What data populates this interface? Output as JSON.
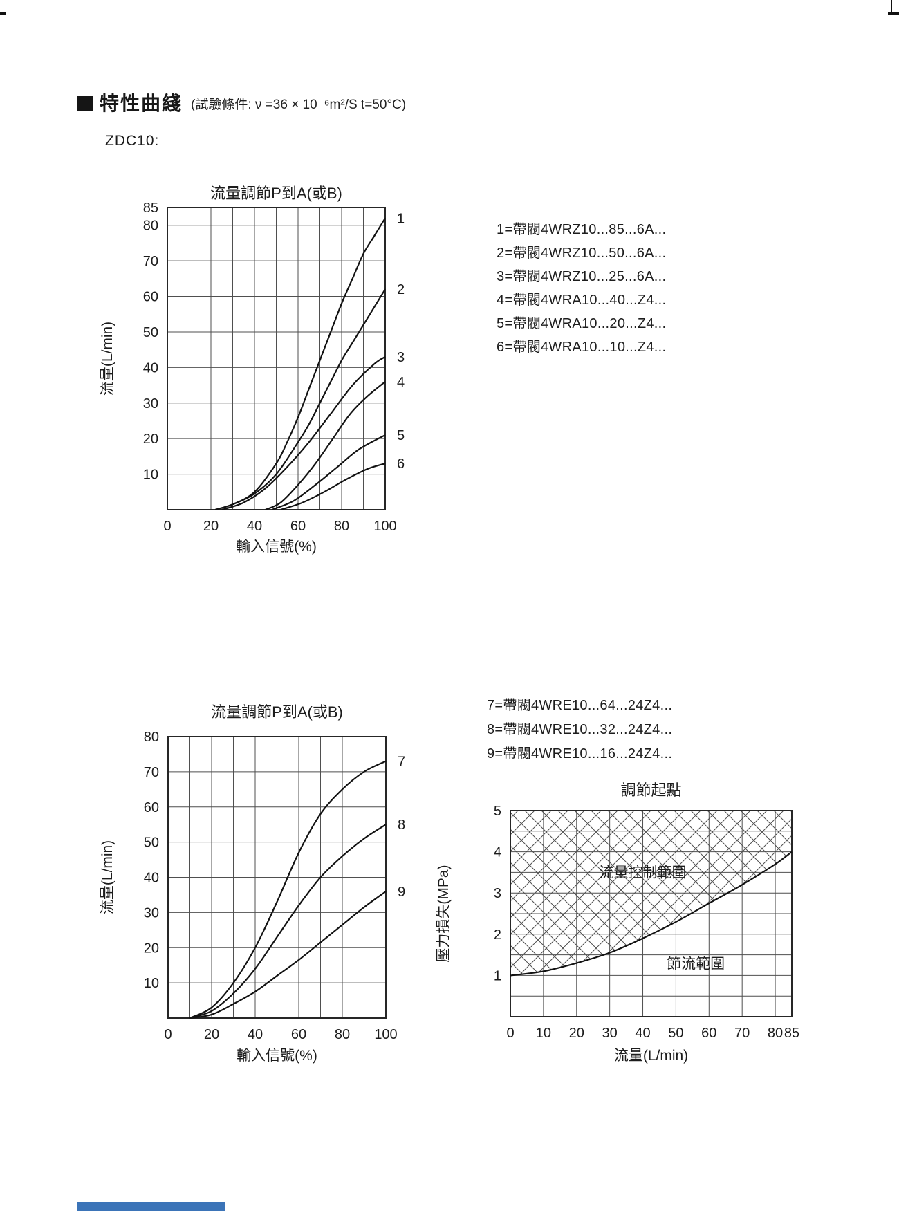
{
  "page": {
    "header": {
      "marker": "",
      "title": "特性曲綫",
      "condition": "(試驗條件: ν =36 × 10⁻⁶m²/S   t=50°C)"
    },
    "model": "ZDC10:"
  },
  "legend1": {
    "items": [
      {
        "label": "1=帶閥4WRZ10...85...6A..."
      },
      {
        "label": "2=帶閥4WRZ10...50...6A..."
      },
      {
        "label": "3=帶閥4WRZ10...25...6A..."
      },
      {
        "label": "4=帶閥4WRA10...40...Z4..."
      },
      {
        "label": "5=帶閥4WRA10...20...Z4..."
      },
      {
        "label": "6=帶閥4WRA10...10...Z4..."
      }
    ]
  },
  "legend2": {
    "items": [
      {
        "label": "7=帶閥4WRE10...64...24Z4..."
      },
      {
        "label": "8=帶閥4WRE10...32...24Z4..."
      },
      {
        "label": "9=帶閥4WRE10...16...24Z4..."
      }
    ]
  },
  "accents": {
    "footer_bar_color": "#3b74b8",
    "grid_color": "#4f4f4f",
    "border_color": "#262626",
    "curve_color": "#121212",
    "text_color": "#1c1c1c"
  },
  "chart_data": [
    {
      "id": "flow-adjust-1",
      "type": "line",
      "title": "流量調節P到A(或B)",
      "xlabel": "輸入信號(%)",
      "ylabel": "流量(L/min)",
      "xlim": [
        0,
        100
      ],
      "ylim": [
        0,
        85
      ],
      "xticks": [
        0,
        20,
        40,
        60,
        80,
        100
      ],
      "yticks": [
        10,
        20,
        30,
        40,
        50,
        60,
        70,
        80,
        85
      ],
      "xgrid_step": 10,
      "ygrid_step": 10,
      "grid": true,
      "legend_position": "right-of-curve-ends",
      "series": [
        {
          "name": "1",
          "points": [
            [
              22,
              0
            ],
            [
              30,
              1.5
            ],
            [
              40,
              5
            ],
            [
              50,
              13
            ],
            [
              55,
              19
            ],
            [
              60,
              26
            ],
            [
              65,
              34
            ],
            [
              70,
              42
            ],
            [
              75,
              50
            ],
            [
              80,
              58
            ],
            [
              85,
              65
            ],
            [
              90,
              72
            ],
            [
              95,
              77
            ],
            [
              100,
              82
            ]
          ]
        },
        {
          "name": "2",
          "points": [
            [
              22,
              0
            ],
            [
              30,
              1.5
            ],
            [
              40,
              4.5
            ],
            [
              50,
              10
            ],
            [
              60,
              19
            ],
            [
              65,
              24
            ],
            [
              70,
              30
            ],
            [
              75,
              36
            ],
            [
              80,
              42
            ],
            [
              85,
              47
            ],
            [
              90,
              52
            ],
            [
              95,
              57
            ],
            [
              100,
              62
            ]
          ]
        },
        {
          "name": "3",
          "points": [
            [
              25,
              0
            ],
            [
              35,
              2
            ],
            [
              45,
              6
            ],
            [
              55,
              12
            ],
            [
              65,
              19
            ],
            [
              75,
              27
            ],
            [
              85,
              35
            ],
            [
              95,
              41
            ],
            [
              100,
              43
            ]
          ]
        },
        {
          "name": "4",
          "points": [
            [
              45,
              0
            ],
            [
              52,
              2
            ],
            [
              60,
              7
            ],
            [
              68,
              13
            ],
            [
              76,
              20
            ],
            [
              84,
              27
            ],
            [
              92,
              32
            ],
            [
              100,
              36
            ]
          ]
        },
        {
          "name": "5",
          "points": [
            [
              48,
              0
            ],
            [
              58,
              2.5
            ],
            [
              68,
              7
            ],
            [
              78,
              12
            ],
            [
              88,
              17
            ],
            [
              100,
              21
            ]
          ]
        },
        {
          "name": "6",
          "points": [
            [
              52,
              0
            ],
            [
              62,
              2
            ],
            [
              72,
              5
            ],
            [
              82,
              8.5
            ],
            [
              92,
              11.5
            ],
            [
              100,
              13
            ]
          ]
        }
      ]
    },
    {
      "id": "flow-adjust-2",
      "type": "line",
      "title": "流量調節P到A(或B)",
      "xlabel": "輸入信號(%)",
      "ylabel": "流量(L/min)",
      "xlim": [
        0,
        100
      ],
      "ylim": [
        0,
        80
      ],
      "xticks": [
        0,
        20,
        40,
        60,
        80,
        100
      ],
      "yticks": [
        10,
        20,
        30,
        40,
        50,
        60,
        70,
        80
      ],
      "xgrid_step": 10,
      "ygrid_step": 10,
      "grid": true,
      "legend_position": "right-of-curve-ends",
      "series": [
        {
          "name": "7",
          "points": [
            [
              10,
              0
            ],
            [
              20,
              3
            ],
            [
              30,
              10
            ],
            [
              40,
              20
            ],
            [
              50,
              33
            ],
            [
              60,
              47
            ],
            [
              70,
              58
            ],
            [
              80,
              65
            ],
            [
              90,
              70
            ],
            [
              100,
              73
            ]
          ]
        },
        {
          "name": "8",
          "points": [
            [
              10,
              0
            ],
            [
              20,
              2
            ],
            [
              30,
              7
            ],
            [
              40,
              14
            ],
            [
              50,
              23
            ],
            [
              60,
              32
            ],
            [
              70,
              40
            ],
            [
              80,
              46
            ],
            [
              90,
              51
            ],
            [
              100,
              55
            ]
          ]
        },
        {
          "name": "9",
          "points": [
            [
              10,
              0
            ],
            [
              20,
              1
            ],
            [
              30,
              4
            ],
            [
              40,
              7.5
            ],
            [
              50,
              12
            ],
            [
              60,
              16.5
            ],
            [
              70,
              21.5
            ],
            [
              80,
              26.5
            ],
            [
              90,
              31.5
            ],
            [
              100,
              36
            ]
          ]
        }
      ]
    },
    {
      "id": "adjust-start-point",
      "type": "area",
      "title": "調節起點",
      "xlabel": "流量(L/min)",
      "ylabel": "壓力損失(MPa)",
      "xlim": [
        0,
        85
      ],
      "ylim": [
        0,
        5
      ],
      "xticks": [
        0,
        10,
        20,
        30,
        40,
        50,
        60,
        70,
        80,
        85
      ],
      "yticks": [
        1,
        2,
        3,
        4,
        5
      ],
      "xgrid_step": 10,
      "ygrid_step": 0.5,
      "grid": true,
      "hatch_above_curve": true,
      "curve": [
        [
          0,
          1
        ],
        [
          10,
          1.1
        ],
        [
          20,
          1.3
        ],
        [
          30,
          1.55
        ],
        [
          40,
          1.9
        ],
        [
          50,
          2.3
        ],
        [
          60,
          2.75
        ],
        [
          70,
          3.2
        ],
        [
          80,
          3.7
        ],
        [
          85,
          4.0
        ]
      ],
      "region_labels": [
        {
          "text": "流量控制範圍",
          "x": 40,
          "y": 3.5
        },
        {
          "text": "節流範圍",
          "x": 56,
          "y": 1.28
        }
      ]
    }
  ]
}
